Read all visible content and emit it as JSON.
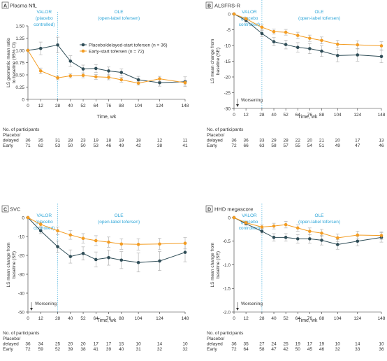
{
  "colors": {
    "placebo": "#2f4d57",
    "early": "#f39c22",
    "accent": "#2ea6d8",
    "axis": "#333333",
    "errbar": "#a8a8a8",
    "panel_label_bg": "#ffffff"
  },
  "common": {
    "xlabel": "Time, wk",
    "x_ticks": [
      0,
      12,
      28,
      40,
      52,
      64,
      76,
      88,
      104,
      124,
      148
    ],
    "valor_label": [
      "VALOR",
      "(placebo",
      "controlled)"
    ],
    "ole_label": [
      "OLE",
      "(open-label tofersen)"
    ],
    "participants_title": "No. of participants",
    "row_placebo_label": [
      "Placebo/",
      "delayed"
    ],
    "row_early_label": "Early",
    "worsening_label": "Worsening"
  },
  "chart_data": [
    {
      "id": "A",
      "type": "line",
      "title": "Plasma NfL",
      "ylabel": [
        "LS geometric mean ratio",
        "to baseline (95% CI)"
      ],
      "ylim": [
        0,
        1.5
      ],
      "y_ticks": [
        "0",
        "0.25",
        "0.50",
        "0.75",
        "1.00",
        "1.25",
        "1.50"
      ],
      "y_tick_values": [
        0,
        0.25,
        0.5,
        0.75,
        1.0,
        1.25,
        1.5
      ],
      "legend": true,
      "worsening": false,
      "x": [
        0,
        12,
        28,
        40,
        52,
        64,
        76,
        88,
        104,
        124,
        148
      ],
      "series": [
        {
          "name": "Placebo/delayed-start tofersen (n = 36)",
          "key": "placebo",
          "values": [
            1.0,
            1.04,
            1.11,
            0.78,
            0.62,
            0.63,
            0.58,
            0.55,
            0.4,
            0.34,
            0.36
          ],
          "err": [
            0,
            0.13,
            0.16,
            0.11,
            0.08,
            0.08,
            0.08,
            0.07,
            0.07,
            0.07,
            0.1
          ]
        },
        {
          "name": "Early-start tofersen (n = 72)",
          "key": "early",
          "values": [
            1.0,
            0.58,
            0.44,
            0.48,
            0.49,
            0.46,
            0.45,
            0.4,
            0.33,
            0.42,
            0.34
          ],
          "err": [
            0,
            0.06,
            0.04,
            0.04,
            0.05,
            0.05,
            0.05,
            0.05,
            0.04,
            0.05,
            0.05
          ]
        }
      ],
      "participants": {
        "placebo": [
          "36",
          "35",
          "31",
          "28",
          "23",
          "19",
          "18",
          "19",
          "18",
          "12",
          "11"
        ],
        "early": [
          "71",
          "62",
          "53",
          "50",
          "50",
          "53",
          "46",
          "49",
          "42",
          "38",
          "41"
        ]
      }
    },
    {
      "id": "B",
      "type": "line",
      "title": "ALSFRS-R",
      "ylabel": [
        "LS mean change from",
        "baseline (SE)"
      ],
      "ylim": [
        -30,
        0
      ],
      "y_ticks": [
        "0",
        "-5",
        "-10",
        "-15",
        "-20",
        "-25",
        "-30"
      ],
      "y_tick_values": [
        0,
        -5,
        -10,
        -15,
        -20,
        -25,
        -30
      ],
      "legend": false,
      "worsening": true,
      "x": [
        0,
        12,
        28,
        40,
        52,
        64,
        76,
        88,
        104,
        124,
        148
      ],
      "series": [
        {
          "name": "Placebo/delayed-start tofersen",
          "key": "placebo",
          "values": [
            0,
            -2.0,
            -6.2,
            -8.8,
            -9.7,
            -10.6,
            -11.0,
            -11.8,
            -13.2,
            -13.0,
            -13.5
          ],
          "err": [
            0,
            0.6,
            1.0,
            1.3,
            1.4,
            1.5,
            1.6,
            1.7,
            2.0,
            2.0,
            2.0
          ]
        },
        {
          "name": "Early-start tofersen",
          "key": "early",
          "values": [
            0,
            -1.5,
            -4.2,
            -5.6,
            -5.8,
            -6.8,
            -7.7,
            -8.4,
            -9.6,
            -9.8,
            -10.1
          ],
          "err": [
            0,
            0.4,
            0.7,
            0.8,
            0.9,
            1.0,
            1.0,
            1.1,
            1.2,
            1.3,
            1.3
          ]
        }
      ],
      "participants": {
        "placebo": [
          "36",
          "36",
          "33",
          "29",
          "28",
          "22",
          "20",
          "21",
          "20",
          "17",
          "13"
        ],
        "early": [
          "72",
          "66",
          "63",
          "58",
          "57",
          "55",
          "54",
          "51",
          "49",
          "47",
          "46"
        ]
      }
    },
    {
      "id": "C",
      "type": "line",
      "title": "SVC",
      "ylabel": [
        "LS mean change from",
        "baseline (SE)"
      ],
      "ylim": [
        -50,
        0
      ],
      "y_ticks": [
        "0",
        "-10",
        "-20",
        "-30",
        "-40",
        "-50"
      ],
      "y_tick_values": [
        0,
        -10,
        -20,
        -30,
        -40,
        -50
      ],
      "legend": false,
      "worsening": true,
      "x": [
        0,
        12,
        28,
        40,
        52,
        64,
        76,
        88,
        104,
        124,
        148
      ],
      "series": [
        {
          "name": "Placebo/delayed-start tofersen",
          "key": "placebo",
          "values": [
            0,
            -7.0,
            -15.4,
            -20.6,
            -19.0,
            -22.2,
            -21.2,
            -22.5,
            -23.8,
            -23.0,
            -18.4
          ],
          "err": [
            0,
            1.5,
            3.0,
            3.5,
            3.5,
            4.0,
            4.0,
            4.5,
            5.0,
            5.0,
            5.0
          ]
        },
        {
          "name": "Early-start tofersen",
          "key": "early",
          "values": [
            0,
            -3.6,
            -7.0,
            -9.2,
            -11.0,
            -12.2,
            -13.0,
            -14.0,
            -14.2,
            -14.0,
            -13.6
          ],
          "err": [
            0,
            1.2,
            2.0,
            2.3,
            2.5,
            2.6,
            2.7,
            2.8,
            3.0,
            3.0,
            3.0
          ]
        }
      ],
      "participants": {
        "placebo": [
          "36",
          "34",
          "25",
          "20",
          "20",
          "17",
          "17",
          "15",
          "10",
          "14",
          "10"
        ],
        "early": [
          "72",
          "59",
          "52",
          "39",
          "38",
          "41",
          "39",
          "40",
          "31",
          "32",
          "32"
        ]
      }
    },
    {
      "id": "D",
      "type": "line",
      "title": "HHD megascore",
      "ylabel": [
        "LS mean change from",
        "baseline (SE)"
      ],
      "ylim": [
        -2.0,
        0
      ],
      "y_ticks": [
        "0",
        "-0.5",
        "-1.0",
        "-1.5",
        "-2.0"
      ],
      "y_tick_values": [
        0,
        -0.5,
        -1.0,
        -1.5,
        -2.0
      ],
      "legend": false,
      "worsening": true,
      "x": [
        0,
        12,
        28,
        40,
        52,
        64,
        76,
        88,
        104,
        124,
        148
      ],
      "series": [
        {
          "name": "Placebo/delayed-start tofersen",
          "key": "placebo",
          "values": [
            0,
            -0.13,
            -0.29,
            -0.42,
            -0.42,
            -0.45,
            -0.45,
            -0.48,
            -0.57,
            -0.5,
            -0.42
          ],
          "err": [
            0,
            0.03,
            0.06,
            0.08,
            0.08,
            0.09,
            0.09,
            0.1,
            0.1,
            0.1,
            0.1
          ]
        },
        {
          "name": "Early-start tofersen",
          "key": "early",
          "values": [
            0,
            -0.11,
            -0.2,
            -0.18,
            -0.15,
            -0.22,
            -0.29,
            -0.33,
            -0.43,
            -0.37,
            -0.38
          ],
          "err": [
            0,
            0.03,
            0.05,
            0.06,
            0.07,
            0.07,
            0.07,
            0.08,
            0.08,
            0.08,
            0.08
          ]
        }
      ],
      "participants": {
        "placebo": [
          "36",
          "35",
          "27",
          "24",
          "25",
          "19",
          "17",
          "19",
          "10",
          "14",
          "10"
        ],
        "early": [
          "72",
          "64",
          "58",
          "47",
          "42",
          "50",
          "45",
          "46",
          "32",
          "33",
          "36"
        ]
      }
    }
  ]
}
